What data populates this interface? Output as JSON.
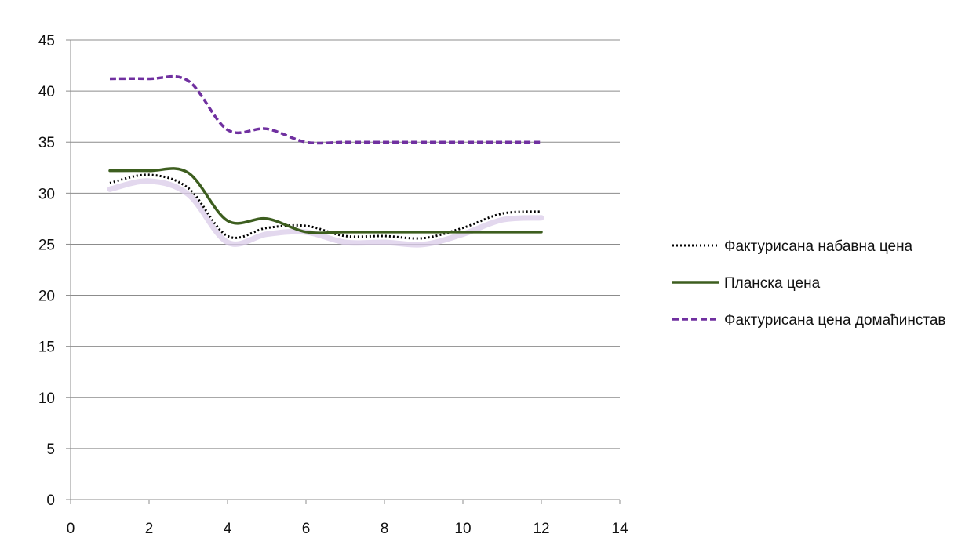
{
  "chart_data": {
    "type": "line",
    "title": "",
    "xlabel": "",
    "ylabel": "",
    "xlim": [
      0,
      14
    ],
    "ylim": [
      0,
      45
    ],
    "x_ticks": [
      "0",
      "2",
      "4",
      "6",
      "8",
      "10",
      "12",
      "14"
    ],
    "y_ticks": [
      "0",
      "5",
      "10",
      "15",
      "20",
      "25",
      "30",
      "35",
      "40",
      "45"
    ],
    "grid": "horizontal",
    "legend_position": "right",
    "x": [
      1,
      2,
      3,
      4,
      5,
      6,
      7,
      8,
      9,
      10,
      11,
      12
    ],
    "series": [
      {
        "name": "Фактурисана набавна цена",
        "style": "dotted",
        "color": "#000000",
        "values": [
          31.0,
          31.8,
          30.5,
          25.8,
          26.6,
          26.8,
          25.8,
          25.8,
          25.6,
          26.6,
          28.0,
          28.2
        ]
      },
      {
        "name": "Планска цена",
        "style": "solid",
        "color": "#3d5e1f",
        "values": [
          32.2,
          32.2,
          32.0,
          27.3,
          27.5,
          26.2,
          26.2,
          26.2,
          26.2,
          26.2,
          26.2,
          26.2
        ]
      },
      {
        "name": "Фактурисана цена домаћинстав",
        "style": "dashed",
        "color": "#7030a0",
        "values": [
          41.2,
          41.2,
          41.0,
          36.2,
          36.3,
          35.0,
          35.0,
          35.0,
          35.0,
          35.0,
          35.0,
          35.0
        ]
      }
    ]
  }
}
